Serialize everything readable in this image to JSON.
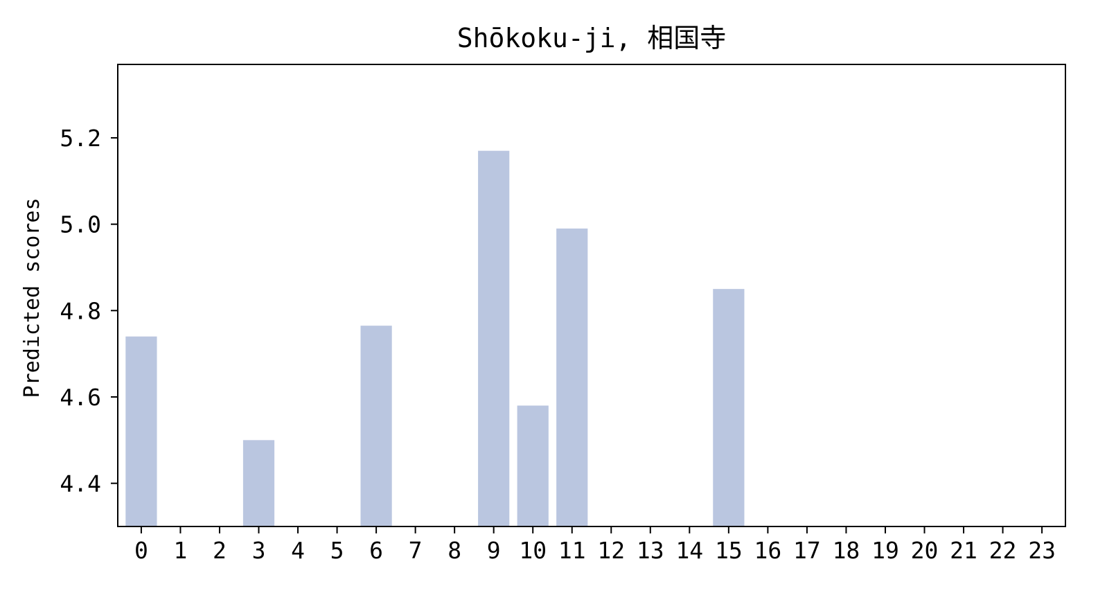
{
  "chart_data": {
    "type": "bar",
    "title": "Shōkoku-ji, 相国寺",
    "xlabel": "",
    "ylabel": "Predicted scores",
    "categories": [
      "0",
      "1",
      "2",
      "3",
      "4",
      "5",
      "6",
      "7",
      "8",
      "9",
      "10",
      "11",
      "12",
      "13",
      "14",
      "15",
      "16",
      "17",
      "18",
      "19",
      "20",
      "21",
      "22",
      "23"
    ],
    "values": [
      4.74,
      null,
      null,
      4.5,
      null,
      null,
      4.765,
      null,
      null,
      5.17,
      4.58,
      4.99,
      null,
      null,
      null,
      4.85,
      null,
      null,
      null,
      null,
      null,
      null,
      null,
      null
    ],
    "yticks": [
      "4.4",
      "4.6",
      "4.8",
      "5.0",
      "5.2"
    ],
    "ytick_values": [
      4.4,
      4.6,
      4.8,
      5.0,
      5.2
    ],
    "ylim": [
      4.3,
      5.37
    ],
    "bar_color": "#bac6e0",
    "grid": false
  }
}
